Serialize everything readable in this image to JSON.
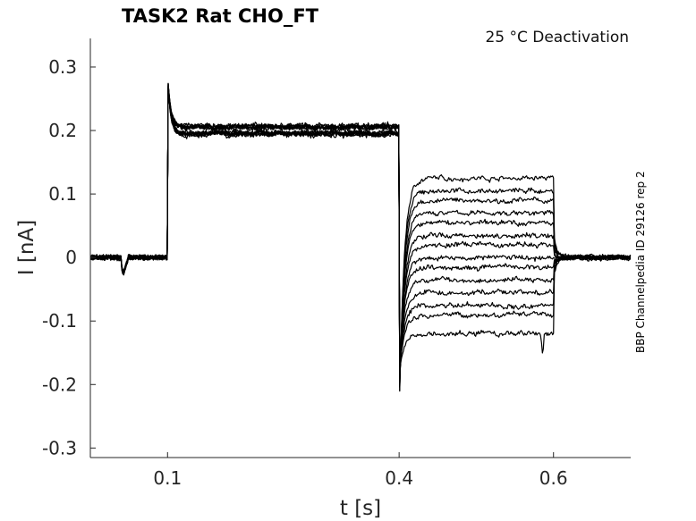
{
  "chart_data": {
    "type": "line",
    "title": "TASK2  Rat  CHO_FT",
    "annotation": "25 °C  Deactivation",
    "side_label": "BBP Channelpedia ID 29126 rep 2",
    "xlabel": "t [s]",
    "ylabel": "I [nA]",
    "xlim": [
      0.0,
      0.7
    ],
    "ylim": [
      -0.315,
      0.345
    ],
    "x_ticks": [
      0.1,
      0.4,
      0.6
    ],
    "x_tick_labels": [
      "0.1",
      "0.4",
      "0.6"
    ],
    "y_ticks": [
      0.3,
      0.2,
      0.1,
      0,
      -0.1,
      -0.2,
      -0.3
    ],
    "y_tick_labels": [
      "0.3",
      "0.2",
      "0.1",
      "0",
      "-0.1",
      "-0.2",
      "-0.3"
    ],
    "grid": false,
    "line_color": "#000000",
    "protocol": {
      "baseline": 0.0,
      "pulse_start": 0.1,
      "activation_level_range": [
        0.195,
        0.215
      ],
      "pulse_end": 0.4,
      "tail_end": 0.6,
      "peak_onset": 0.285,
      "min_tail_transient": -0.26
    },
    "series_tail_levels": [
      0.125,
      0.105,
      0.09,
      0.07,
      0.055,
      0.035,
      0.02,
      0.0,
      -0.015,
      -0.035,
      -0.055,
      -0.075,
      -0.09,
      -0.12
    ]
  }
}
